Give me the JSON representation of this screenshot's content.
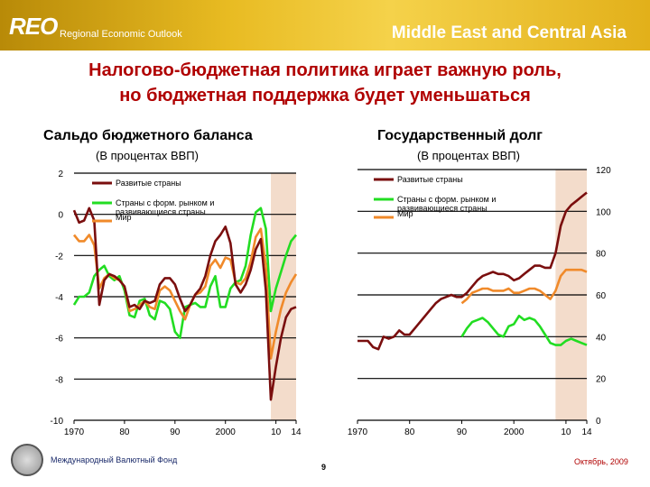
{
  "header": {
    "logo": "REO",
    "subtitle": "Regional Economic Outlook",
    "region": "Middle East and Central Asia"
  },
  "title": {
    "line1": "Налогово-бюджетная политика играет важную роль,",
    "line2": "но бюджетная поддержка будет уменьшаться"
  },
  "footer": {
    "org": "Международный Валютный Фонд",
    "page": "9",
    "date": "Октябрь, 2009"
  },
  "colors": {
    "advanced": "#7a0e0e",
    "emerging": "#22dd22",
    "world": "#f08a2a",
    "shade": "#f3dccb",
    "title": "#b00000"
  },
  "chart_data": [
    {
      "type": "line",
      "title": "Сальдо бюджетного баланса",
      "subtitle": "(В процентах ВВП)",
      "xlim": [
        1970,
        2014
      ],
      "ylim": [
        -10,
        2
      ],
      "yticks": [
        2,
        0,
        -2,
        -4,
        -6,
        -8,
        -10
      ],
      "xticks": [
        {
          "value": 1970,
          "label": "1970"
        },
        {
          "value": 1980,
          "label": "80"
        },
        {
          "value": 1990,
          "label": "90"
        },
        {
          "value": 2000,
          "label": "2000"
        },
        {
          "value": 2010,
          "label": "10"
        },
        {
          "value": 2014,
          "label": "14"
        }
      ],
      "shaded": [
        2009,
        2014
      ],
      "legend": [
        "Развитые страны",
        "Страны с форм. рынком и развивающиеся страны",
        "Мир"
      ],
      "series": [
        {
          "name": "Развитые страны",
          "color": "#7a0e0e",
          "x": [
            1970,
            1971,
            1972,
            1973,
            1974,
            1975,
            1976,
            1977,
            1978,
            1979,
            1980,
            1981,
            1982,
            1983,
            1984,
            1985,
            1986,
            1987,
            1988,
            1989,
            1990,
            1991,
            1992,
            1993,
            1994,
            1995,
            1996,
            1997,
            1998,
            1999,
            2000,
            2001,
            2002,
            2003,
            2004,
            2005,
            2006,
            2007,
            2008,
            2009,
            2010,
            2011,
            2012,
            2013,
            2014
          ],
          "values": [
            0.2,
            -0.4,
            -0.3,
            0.3,
            -0.3,
            -4.4,
            -3.2,
            -2.9,
            -3.0,
            -3.2,
            -3.5,
            -4.5,
            -4.4,
            -4.6,
            -4.2,
            -4.3,
            -4.2,
            -3.4,
            -3.1,
            -3.1,
            -3.4,
            -4.1,
            -4.7,
            -4.4,
            -3.9,
            -3.6,
            -3.0,
            -2.0,
            -1.3,
            -1.0,
            -0.6,
            -1.4,
            -3.4,
            -3.8,
            -3.4,
            -2.7,
            -1.7,
            -1.2,
            -3.7,
            -9.0,
            -7.4,
            -6.0,
            -5.0,
            -4.6,
            -4.5
          ]
        },
        {
          "name": "Страны с форм. рынком и развивающиеся страны",
          "color": "#22dd22",
          "x": [
            1970,
            1971,
            1972,
            1973,
            1974,
            1975,
            1976,
            1977,
            1978,
            1979,
            1980,
            1981,
            1982,
            1983,
            1984,
            1985,
            1986,
            1987,
            1988,
            1989,
            1990,
            1991,
            1992,
            1993,
            1994,
            1995,
            1996,
            1997,
            1998,
            1999,
            2000,
            2001,
            2002,
            2003,
            2004,
            2005,
            2006,
            2007,
            2008,
            2009,
            2010,
            2011,
            2012,
            2013,
            2014
          ],
          "values": [
            -4.4,
            -4.0,
            -4.0,
            -3.8,
            -3.0,
            -2.7,
            -2.5,
            -3.0,
            -3.2,
            -3.0,
            -3.7,
            -4.9,
            -5.0,
            -4.2,
            -4.1,
            -4.9,
            -5.1,
            -4.2,
            -4.3,
            -4.6,
            -5.7,
            -6.0,
            -4.5,
            -4.4,
            -4.3,
            -4.5,
            -4.5,
            -3.5,
            -3.0,
            -4.5,
            -4.5,
            -3.6,
            -3.3,
            -3.2,
            -2.5,
            -1.0,
            0.1,
            0.3,
            -0.7,
            -4.7,
            -3.6,
            -2.8,
            -2.0,
            -1.3,
            -1.0
          ]
        },
        {
          "name": "Мир",
          "color": "#f08a2a",
          "x": [
            1970,
            1971,
            1972,
            1973,
            1974,
            1975,
            1976,
            1977,
            1978,
            1979,
            1980,
            1981,
            1982,
            1983,
            1984,
            1985,
            1986,
            1987,
            1988,
            1989,
            1990,
            1991,
            1992,
            1993,
            1994,
            1995,
            1996,
            1997,
            1998,
            1999,
            2000,
            2001,
            2002,
            2003,
            2004,
            2005,
            2006,
            2007,
            2008,
            2009,
            2010,
            2011,
            2012,
            2013,
            2014
          ],
          "values": [
            -1.0,
            -1.3,
            -1.3,
            -1.0,
            -1.5,
            -3.6,
            -3.1,
            -2.9,
            -3.1,
            -3.2,
            -3.5,
            -4.7,
            -4.6,
            -4.4,
            -4.2,
            -4.5,
            -4.6,
            -3.7,
            -3.5,
            -3.7,
            -4.2,
            -4.7,
            -5.1,
            -4.4,
            -3.9,
            -3.8,
            -3.5,
            -2.5,
            -2.2,
            -2.6,
            -2.1,
            -2.2,
            -3.3,
            -3.4,
            -3.1,
            -2.3,
            -1.1,
            -0.7,
            -2.5,
            -7.0,
            -5.7,
            -4.6,
            -3.8,
            -3.3,
            -2.9
          ]
        }
      ]
    },
    {
      "type": "line",
      "title": "Государственный долг",
      "subtitle": "(В процентах ВВП)",
      "xlim": [
        1970,
        2014
      ],
      "ylim": [
        0,
        120
      ],
      "yticks": [
        120,
        100,
        80,
        60,
        40,
        20,
        0
      ],
      "xticks": [
        {
          "value": 1970,
          "label": "1970"
        },
        {
          "value": 1980,
          "label": "80"
        },
        {
          "value": 1990,
          "label": "90"
        },
        {
          "value": 2000,
          "label": "2000"
        },
        {
          "value": 2010,
          "label": "10"
        },
        {
          "value": 2014,
          "label": "14"
        }
      ],
      "shaded": [
        2008,
        2014
      ],
      "legend": [
        "Развитые страны",
        "Страны с форм. рынком и развивающиеся страны",
        "Мир"
      ],
      "series": [
        {
          "name": "Развитые страны",
          "color": "#7a0e0e",
          "x": [
            1970,
            1971,
            1972,
            1973,
            1974,
            1975,
            1976,
            1977,
            1978,
            1979,
            1980,
            1981,
            1982,
            1983,
            1984,
            1985,
            1986,
            1987,
            1988,
            1989,
            1990,
            1991,
            1992,
            1993,
            1994,
            1995,
            1996,
            1997,
            1998,
            1999,
            2000,
            2001,
            2002,
            2003,
            2004,
            2005,
            2006,
            2007,
            2008,
            2009,
            2010,
            2011,
            2012,
            2013,
            2014
          ],
          "values": [
            38,
            38,
            38,
            35,
            34,
            40,
            39,
            40,
            43,
            41,
            41,
            44,
            47,
            50,
            53,
            56,
            58,
            59,
            60,
            59,
            59,
            61,
            64,
            67,
            69,
            70,
            71,
            70,
            70,
            69,
            67,
            68,
            70,
            72,
            74,
            74,
            73,
            73,
            80,
            93,
            100,
            103,
            105,
            107,
            109
          ]
        },
        {
          "name": "Страны с форм. рынком и развивающиеся страны",
          "color": "#22dd22",
          "x": [
            1990,
            1991,
            1992,
            1993,
            1994,
            1995,
            1996,
            1997,
            1998,
            1999,
            2000,
            2001,
            2002,
            2003,
            2004,
            2005,
            2006,
            2007,
            2008,
            2009,
            2010,
            2011,
            2012,
            2013,
            2014
          ],
          "values": [
            40,
            44,
            47,
            48,
            49,
            47,
            44,
            41,
            40,
            45,
            46,
            50,
            48,
            49,
            48,
            45,
            41,
            37,
            36,
            36,
            38,
            39,
            38,
            37,
            36
          ]
        },
        {
          "name": "Мир",
          "color": "#f08a2a",
          "x": [
            1990,
            1991,
            1992,
            1993,
            1994,
            1995,
            1996,
            1997,
            1998,
            1999,
            2000,
            2001,
            2002,
            2003,
            2004,
            2005,
            2006,
            2007,
            2008,
            2009,
            2010,
            2011,
            2012,
            2013,
            2014
          ],
          "values": [
            56,
            58,
            61,
            62,
            63,
            63,
            62,
            62,
            62,
            63,
            61,
            61,
            62,
            63,
            63,
            62,
            60,
            58,
            62,
            69,
            72,
            72,
            72,
            72,
            71
          ]
        }
      ]
    }
  ]
}
